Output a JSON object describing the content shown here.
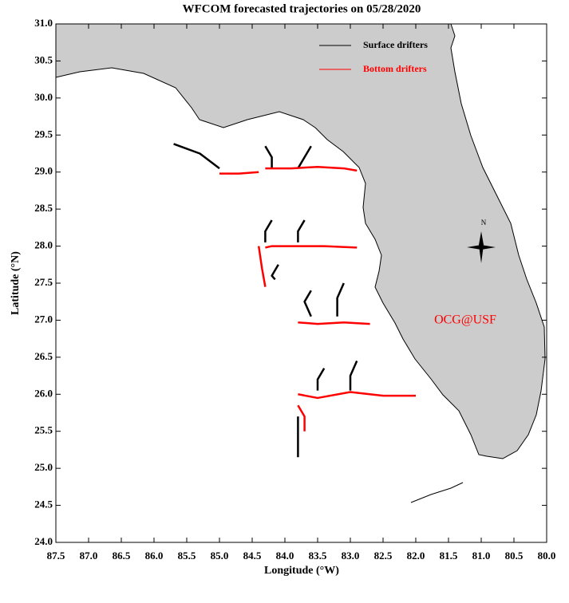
{
  "chart_data": {
    "type": "trajectory-map",
    "title": "WFCOM forecasted trajectories on 05/28/2020",
    "x_label": "Longitude (°W)",
    "y_label": "Latitude (°N)",
    "annotation": "OCG@USF",
    "xlim": [
      87.5,
      80.0
    ],
    "ylim": [
      24.0,
      31.0
    ],
    "xticks": [
      87.5,
      {
        "value": 87,
        "label": "87.0"
      },
      86.5,
      {
        "value": 86,
        "label": "86.0"
      },
      85.5,
      {
        "value": 85,
        "label": "85.0"
      },
      84.5,
      {
        "value": 84,
        "label": "84.0"
      },
      83.5,
      {
        "value": 83,
        "label": "83.0"
      },
      82.5,
      {
        "value": 82,
        "label": "82.0"
      },
      81.5,
      {
        "value": 81,
        "label": "81.0"
      },
      80.5,
      {
        "value": 80,
        "label": "80.0"
      }
    ],
    "yticks": [
      {
        "value": 24,
        "label": "24.0"
      },
      24.5,
      {
        "value": 25,
        "label": "25.0"
      },
      25.5,
      {
        "value": 26,
        "label": "26.0"
      },
      26.5,
      {
        "value": 27,
        "label": "27.0"
      },
      27.5,
      {
        "value": 28,
        "label": "28.0"
      },
      28.5,
      {
        "value": 29,
        "label": "29.0"
      },
      29.5,
      {
        "value": 30,
        "label": "30.0"
      },
      30.5,
      {
        "value": 31,
        "label": "31.0"
      }
    ],
    "series": [
      {
        "name": "Surface drifters",
        "color": "#000000",
        "tracks": [
          {
            "x": [
              85.0,
              85.3,
              85.7
            ],
            "y": [
              29.05,
              29.25,
              29.38
            ]
          },
          {
            "x": [
              84.2,
              84.2,
              84.3
            ],
            "y": [
              29.05,
              29.2,
              29.35
            ]
          },
          {
            "x": [
              83.8,
              83.7,
              83.6
            ],
            "y": [
              29.05,
              29.2,
              29.35
            ]
          },
          {
            "x": [
              84.3,
              84.3,
              84.2
            ],
            "y": [
              28.05,
              28.2,
              28.35
            ]
          },
          {
            "x": [
              83.8,
              83.8,
              83.7
            ],
            "y": [
              28.05,
              28.2,
              28.35
            ]
          },
          {
            "x": [
              84.1,
              84.2,
              84.15
            ],
            "y": [
              27.75,
              27.6,
              27.55
            ]
          },
          {
            "x": [
              83.6,
              83.7,
              83.6
            ],
            "y": [
              27.05,
              27.25,
              27.4
            ]
          },
          {
            "x": [
              83.2,
              83.2,
              83.1
            ],
            "y": [
              27.05,
              27.3,
              27.5
            ]
          },
          {
            "x": [
              83.5,
              83.5,
              83.4
            ],
            "y": [
              26.05,
              26.2,
              26.35
            ]
          },
          {
            "x": [
              83.0,
              83.0,
              82.9
            ],
            "y": [
              26.05,
              26.25,
              26.45
            ]
          },
          {
            "x": [
              83.8,
              83.8,
              83.8
            ],
            "y": [
              25.7,
              25.4,
              25.15
            ]
          }
        ]
      },
      {
        "name": "Bottom drifters",
        "color": "#ff0000",
        "tracks": [
          {
            "x": [
              85.0,
              84.7,
              84.4
            ],
            "y": [
              28.98,
              28.98,
              29.0
            ]
          },
          {
            "x": [
              84.3,
              83.9,
              83.5,
              83.1,
              82.9
            ],
            "y": [
              29.05,
              29.05,
              29.07,
              29.05,
              29.02
            ]
          },
          {
            "x": [
              84.3,
              84.2,
              83.8,
              83.4,
              82.9
            ],
            "y": [
              27.98,
              28.0,
              28.0,
              28.0,
              27.98
            ]
          },
          {
            "x": [
              84.4,
              84.35,
              84.3
            ],
            "y": [
              28.0,
              27.7,
              27.45
            ]
          },
          {
            "x": [
              83.8,
              83.5,
              83.1,
              82.7
            ],
            "y": [
              26.97,
              26.95,
              26.97,
              26.95
            ]
          },
          {
            "x": [
              83.8,
              83.5,
              83.0,
              82.5,
              82.0
            ],
            "y": [
              26.0,
              25.95,
              26.03,
              25.98,
              25.98
            ]
          },
          {
            "x": [
              83.8,
              83.7,
              83.7
            ],
            "y": [
              25.85,
              25.7,
              25.5
            ]
          }
        ]
      }
    ]
  }
}
